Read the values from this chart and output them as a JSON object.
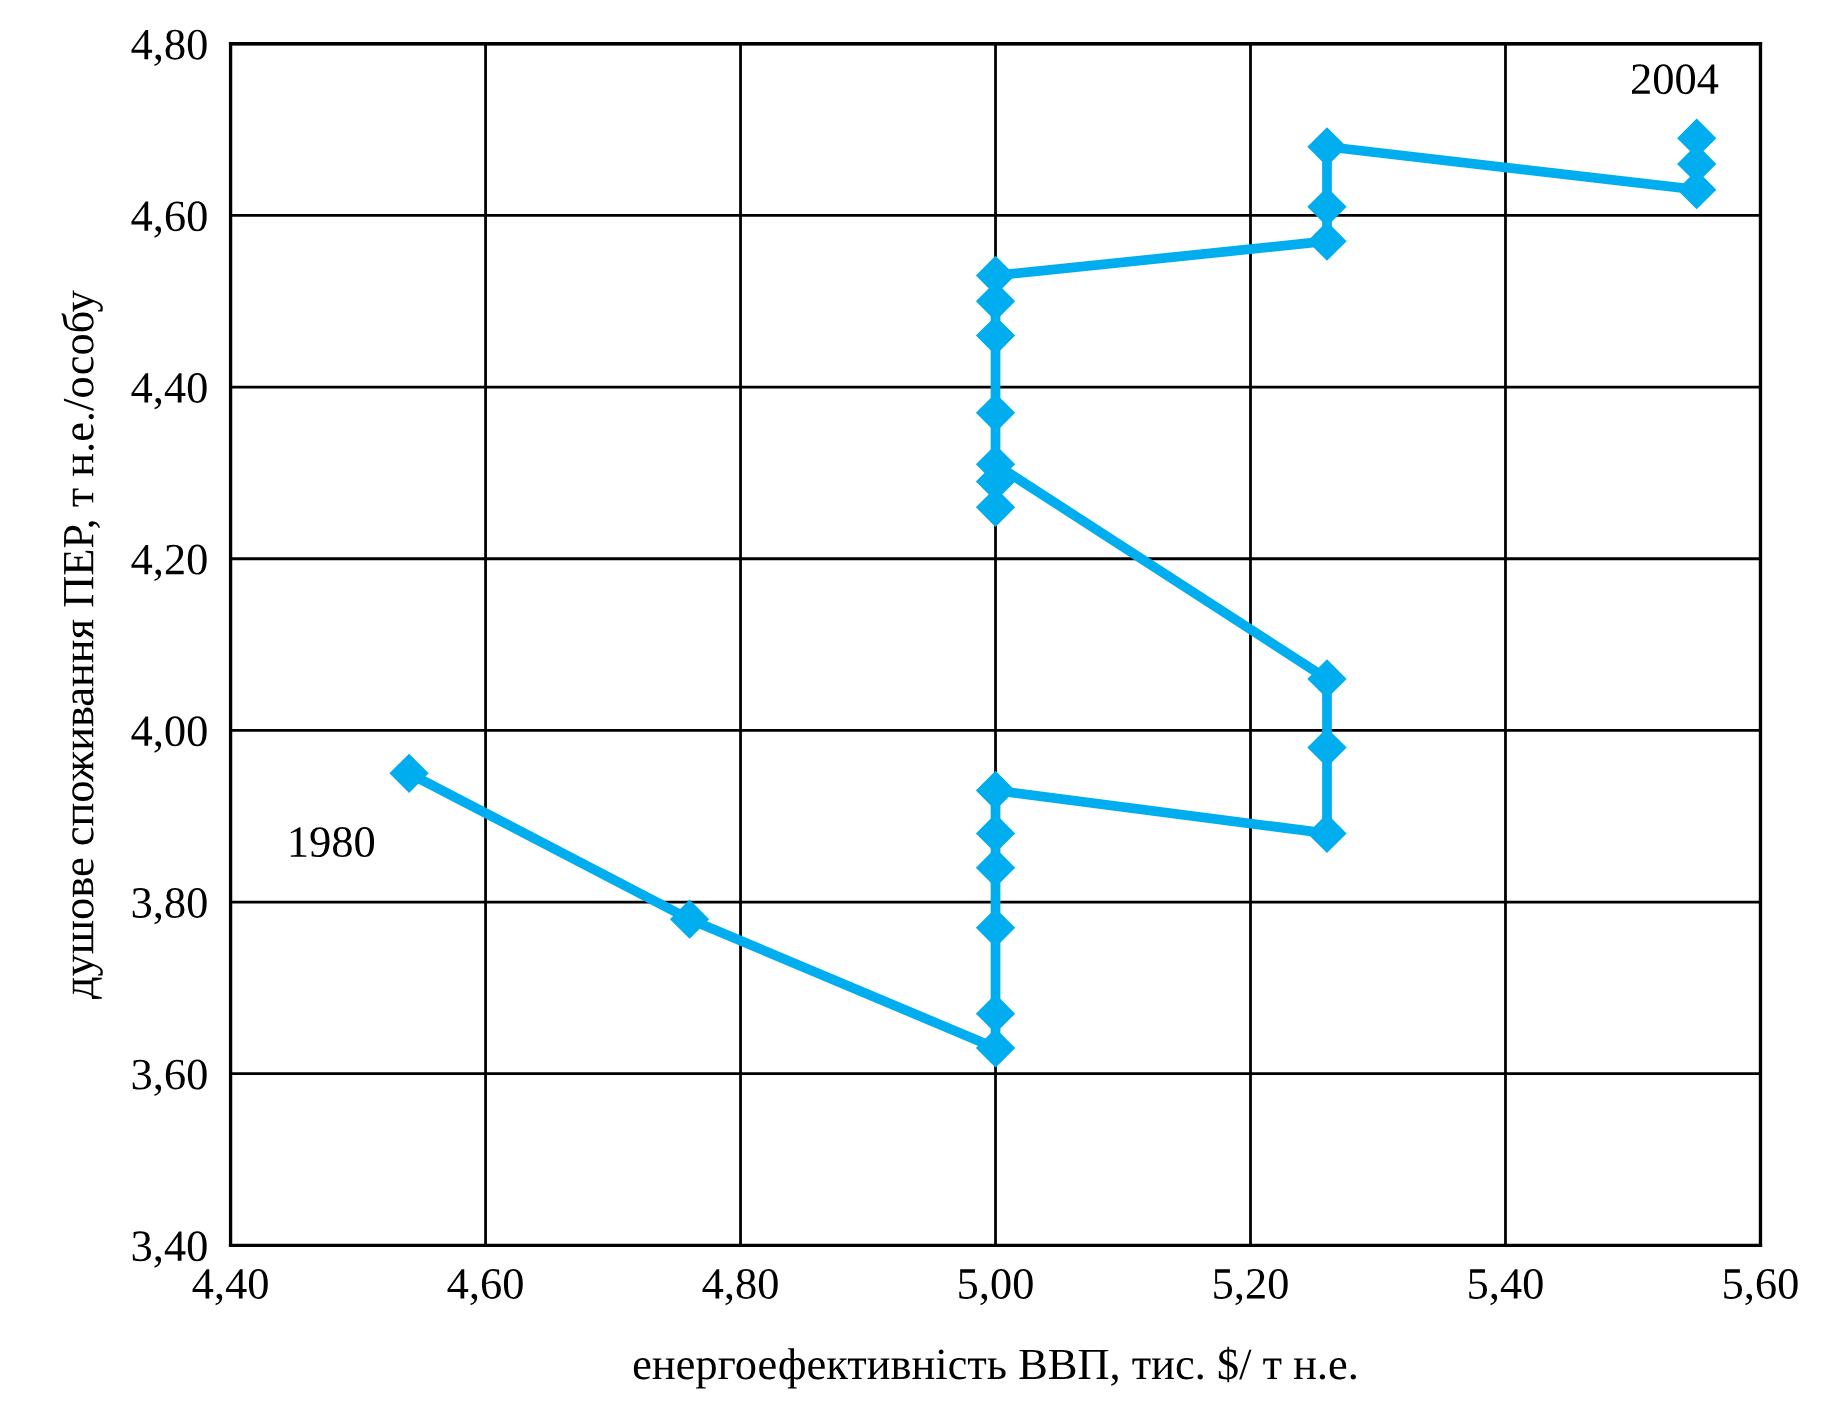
{
  "chart_data": {
    "type": "line",
    "xlabel": "енергоефективність ВВП, тис. $/ т н.е.",
    "ylabel": "душове споживання ПЕР, т н.е./особу",
    "x": [
      4.54,
      4.76,
      5.0,
      5.0,
      5.0,
      5.0,
      5.0,
      5.0,
      5.26,
      5.26,
      5.26,
      5.0,
      5.0,
      5.0,
      5.0,
      5.0,
      5.0,
      5.0,
      5.26,
      5.26,
      5.26,
      5.55,
      5.55,
      5.55
    ],
    "series": [
      {
        "color": "#00aeef",
        "values": [
          3.95,
          3.78,
          3.63,
          3.67,
          3.77,
          3.84,
          3.88,
          3.93,
          3.88,
          3.98,
          4.06,
          4.31,
          4.29,
          4.26,
          4.37,
          4.46,
          4.5,
          4.53,
          4.57,
          4.61,
          4.68,
          4.63,
          4.66,
          4.69
        ]
      }
    ],
    "annotations": [
      {
        "text": "1980",
        "x": 4.54,
        "y": 3.95
      },
      {
        "text": "2004",
        "x": 5.55,
        "y": 4.69
      }
    ],
    "xlim": [
      4.4,
      5.6
    ],
    "xticks": [
      {
        "value": 4.4,
        "label": "4,40"
      },
      {
        "value": 4.6,
        "label": "4,60"
      },
      {
        "value": 4.8,
        "label": "4,80"
      },
      {
        "value": 5.0,
        "label": "5,00"
      },
      {
        "value": 5.2,
        "label": "5,20"
      },
      {
        "value": 5.4,
        "label": "5,40"
      },
      {
        "value": 5.6,
        "label": "5,60"
      }
    ],
    "ylim": [
      3.4,
      4.8
    ],
    "yticks": [
      {
        "value": 3.4,
        "label": "3,40"
      },
      {
        "value": 3.6,
        "label": "3,60"
      },
      {
        "value": 3.8,
        "label": "3,80"
      },
      {
        "value": 4.0,
        "label": "4,00"
      },
      {
        "value": 4.2,
        "label": "4,20"
      },
      {
        "value": 4.4,
        "label": "4,40"
      },
      {
        "value": 4.6,
        "label": "4,60"
      },
      {
        "value": 4.8,
        "label": "4,80"
      }
    ],
    "grid": true,
    "marker": "diamond",
    "line_style": "solid"
  }
}
